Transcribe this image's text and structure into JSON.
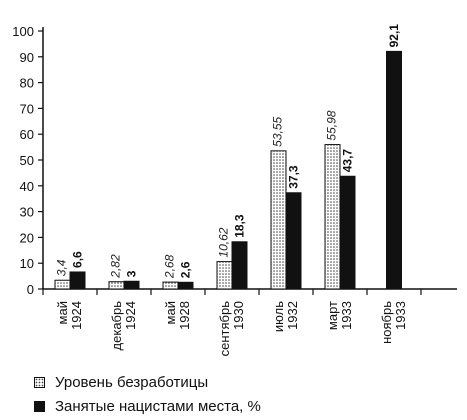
{
  "chart_data": {
    "type": "bar",
    "categories": [
      [
        "май",
        "1924"
      ],
      [
        "декабрь",
        "1924"
      ],
      [
        "май",
        "1928"
      ],
      [
        "сентябрь",
        "1930"
      ],
      [
        "июль",
        "1932"
      ],
      [
        "март",
        "1933"
      ],
      [
        "ноябрь",
        "1933"
      ]
    ],
    "series": [
      {
        "name": "Уровень безработицы",
        "values": [
          3.4,
          2.82,
          2.68,
          10.62,
          53.55,
          55.98,
          null
        ],
        "labels": [
          "3,4",
          "2,82",
          "2,68",
          "10,62",
          "53,55",
          "55,98",
          ""
        ],
        "pattern": "dotted"
      },
      {
        "name": "Занятые нацистами места, %",
        "values": [
          6.6,
          3,
          2.6,
          18.3,
          37.3,
          43.7,
          92.1
        ],
        "labels": [
          "6,6",
          "3",
          "2,6",
          "18,3",
          "37,3",
          "43,7",
          "92,1"
        ],
        "color": "#111111"
      }
    ],
    "yticks": [
      "0",
      "10",
      "20",
      "30",
      "40",
      "50",
      "60",
      "70",
      "80",
      "90",
      "100"
    ],
    "ylim": [
      0,
      100
    ],
    "grid": false,
    "legend_position": "bottom-left",
    "title": "",
    "xlabel": "",
    "ylabel": ""
  }
}
